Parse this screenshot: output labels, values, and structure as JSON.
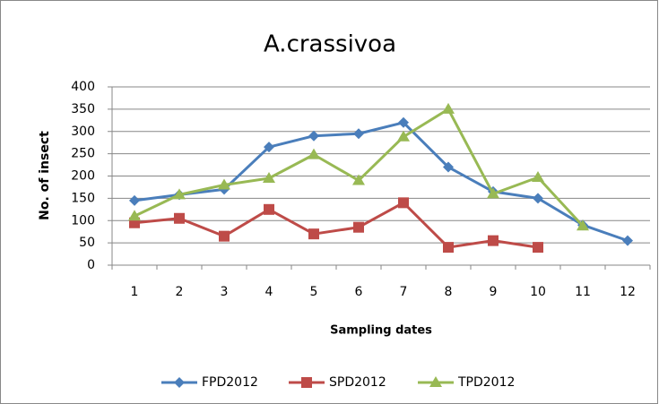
{
  "chart_data": {
    "type": "line",
    "title": "A.crassivoa",
    "x_label": "Sampling dates",
    "y_label": "No. of insect",
    "categories": [
      "1",
      "2",
      "3",
      "4",
      "5",
      "6",
      "7",
      "8",
      "9",
      "10",
      "11",
      "12"
    ],
    "series": [
      {
        "name": "FPD2012",
        "color": "#4a7ebb",
        "marker": "diamond",
        "values": [
          145,
          158,
          170,
          265,
          290,
          295,
          320,
          220,
          165,
          150,
          90,
          55
        ]
      },
      {
        "name": "SPD2012",
        "color": "#be4b48",
        "marker": "square",
        "values": [
          95,
          105,
          65,
          125,
          70,
          85,
          140,
          40,
          55,
          40,
          null,
          null
        ]
      },
      {
        "name": "TPD2012",
        "color": "#98b954",
        "marker": "triangle",
        "values": [
          110,
          158,
          180,
          195,
          248,
          190,
          288,
          350,
          160,
          197,
          88,
          null
        ]
      }
    ],
    "ylim": [
      0,
      400
    ],
    "yticks": [
      0,
      50,
      100,
      150,
      200,
      250,
      300,
      350,
      400
    ],
    "grid": true,
    "legend": "bottom"
  }
}
